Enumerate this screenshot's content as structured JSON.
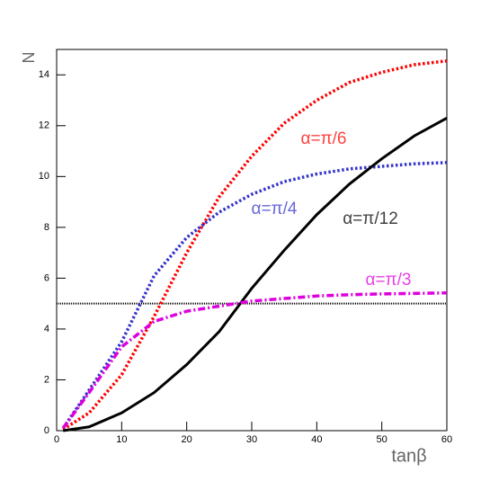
{
  "chart_data": {
    "type": "line",
    "x_label": "tanβ",
    "y_label": "N",
    "xlim": [
      0,
      60
    ],
    "ylim": [
      0,
      15
    ],
    "xticks": [
      0,
      10,
      20,
      30,
      40,
      50,
      60
    ],
    "yticks": [
      0,
      2,
      4,
      6,
      8,
      10,
      12,
      14
    ],
    "x": [
      1,
      5,
      10,
      15,
      20,
      25,
      30,
      35,
      40,
      45,
      50,
      55,
      60
    ],
    "series": [
      {
        "name": "α=π/6",
        "color": "#ff0000",
        "style": "dotted",
        "values": [
          0.05,
          0.7,
          2.2,
          4.5,
          7.0,
          9.2,
          10.8,
          12.1,
          13.0,
          13.7,
          14.1,
          14.4,
          14.55
        ]
      },
      {
        "name": "α=π/4",
        "color": "#3333cc",
        "style": "dotted",
        "values": [
          0.1,
          1.6,
          3.5,
          6.1,
          7.6,
          8.6,
          9.3,
          9.8,
          10.1,
          10.3,
          10.4,
          10.5,
          10.55
        ]
      },
      {
        "name": "α=π/12",
        "color": "#000000",
        "style": "solid",
        "values": [
          0.0,
          0.15,
          0.7,
          1.5,
          2.6,
          3.9,
          5.6,
          7.1,
          8.5,
          9.7,
          10.7,
          11.6,
          12.3
        ]
      },
      {
        "name": "α=π/3",
        "color": "#dd00dd",
        "style": "dashdot",
        "values": [
          0.1,
          1.5,
          3.3,
          4.3,
          4.7,
          4.9,
          5.1,
          5.2,
          5.3,
          5.35,
          5.38,
          5.4,
          5.42
        ]
      }
    ],
    "reference_line": {
      "value": 5,
      "color": "#000000"
    }
  }
}
